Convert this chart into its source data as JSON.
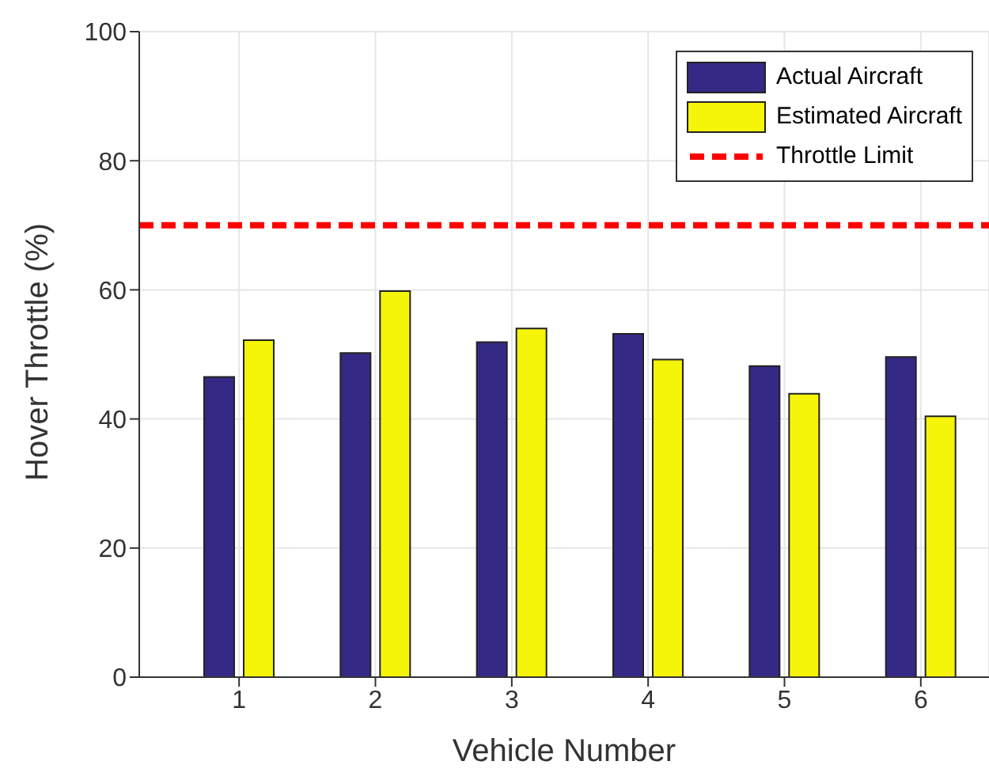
{
  "chart_data": {
    "type": "bar",
    "xlabel": "Vehicle Number",
    "ylabel": "Hover Throttle (%)",
    "categories": [
      "1",
      "2",
      "3",
      "4",
      "5",
      "6"
    ],
    "series": [
      {
        "name": "Actual Aircraft",
        "color": "#342a85",
        "values": [
          46.5,
          50.2,
          51.9,
          53.2,
          48.2,
          49.6
        ]
      },
      {
        "name": "Estimated Aircraft",
        "color": "#f5f50a",
        "values": [
          52.2,
          59.8,
          54,
          49.2,
          43.9,
          40.4
        ]
      }
    ],
    "ref_lines": [
      {
        "axis": "y",
        "value": 70,
        "label": "Throttle Limit",
        "color": "#ff0000",
        "line_style": "dashed"
      }
    ],
    "ylim": [
      0,
      100
    ],
    "yticks": [
      0,
      20,
      40,
      60,
      80,
      100
    ],
    "grid": true,
    "legend": "top right"
  }
}
